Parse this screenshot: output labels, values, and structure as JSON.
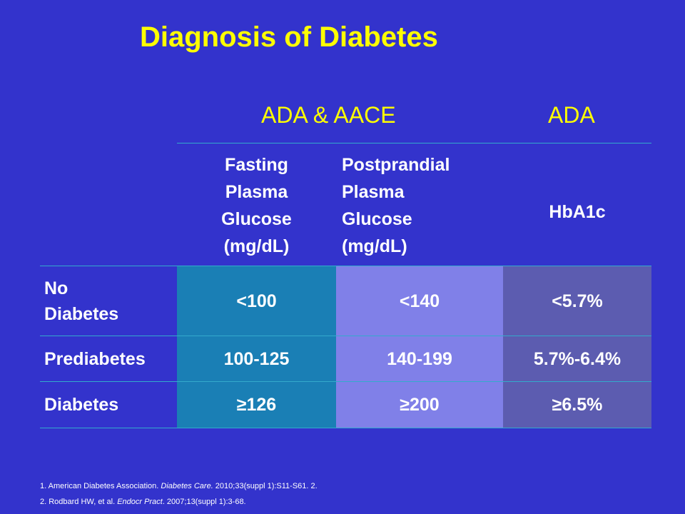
{
  "title": "Diagnosis of Diabetes",
  "groups": {
    "ada_aace": "ADA & AACE",
    "ada": "ADA"
  },
  "columns": {
    "fasting": [
      "Fasting",
      "Plasma",
      "Glucose",
      "(mg/dL)"
    ],
    "postprandial": [
      "Postprandial",
      "Plasma",
      "Glucose",
      "(mg/dL)"
    ],
    "hba1c": "HbA1c"
  },
  "rows": [
    {
      "label": [
        "No",
        "Diabetes"
      ],
      "fasting": "<100",
      "postprandial": "<140",
      "hba1c": "<5.7%"
    },
    {
      "label": [
        "Prediabetes"
      ],
      "fasting": "100-125",
      "postprandial": "140-199",
      "hba1c": "5.7%-6.4%"
    },
    {
      "label": [
        "Diabetes"
      ],
      "fasting": "≥126",
      "postprandial": "≥200",
      "hba1c": "≥6.5%"
    }
  ],
  "references": [
    {
      "pre": "1.  American Diabetes Association. ",
      "journal": "Diabetes Care.",
      "post": " 2010;33(suppl 1):S11-S61. 2."
    },
    {
      "pre": "2.  Rodbard HW, et al. ",
      "journal": "Endocr Pract",
      "post": ". 2007;13(suppl 1):3-68."
    }
  ],
  "colors": {
    "background": "#3333cc",
    "title": "#ffff00",
    "fasting_col": "#1a7fb5",
    "postprandial_col": "#8080e8",
    "hba1c_col": "#5c5cb0",
    "rule": "#33aacc"
  }
}
